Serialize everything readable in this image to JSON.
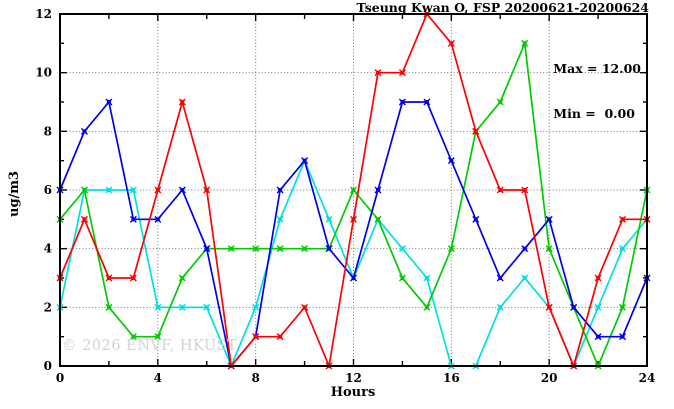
{
  "watermark": {
    "text": "© 2026 ENVF, HKUST"
  },
  "chart_data": {
    "type": "line",
    "title": "Tseung Kwan O, FSP 20200621-20200624",
    "xlabel": "Hours",
    "ylabel": "ug/m3",
    "xlim": [
      0,
      24
    ],
    "ylim": [
      0,
      12
    ],
    "x_major_ticks": [
      0,
      4,
      8,
      12,
      16,
      20,
      24
    ],
    "x_minor_tick_step": 2,
    "y_major_ticks": [
      0,
      2,
      4,
      6,
      8,
      10,
      12
    ],
    "y_minor_tick_step": 1,
    "grid": {
      "x": [
        4,
        8,
        12,
        16,
        20
      ],
      "y": [
        2,
        4,
        6,
        8,
        10
      ],
      "style": "dotted"
    },
    "legend": "none",
    "x": [
      0,
      1,
      2,
      3,
      4,
      5,
      6,
      7,
      8,
      9,
      10,
      11,
      12,
      13,
      14,
      15,
      16,
      17,
      18,
      19,
      20,
      21,
      22,
      23,
      24
    ],
    "series": [
      {
        "name": "cyan-line",
        "color": "#00e0e0",
        "values": [
          2,
          6,
          6,
          6,
          2,
          2,
          2,
          0,
          2,
          5,
          7,
          5,
          3,
          5,
          4,
          3,
          0,
          0,
          2,
          3,
          2,
          0,
          2,
          4,
          5
        ]
      },
      {
        "name": "green-line",
        "color": "#00cc00",
        "values": [
          5,
          6,
          2,
          1,
          1,
          3,
          4,
          4,
          4,
          4,
          4,
          4,
          6,
          5,
          3,
          2,
          4,
          8,
          9,
          11,
          4,
          2,
          0,
          2,
          6
        ]
      },
      {
        "name": "blue-line",
        "color": "#0000ee",
        "values": [
          6,
          8,
          9,
          5,
          5,
          6,
          4,
          0,
          1,
          6,
          7,
          4,
          3,
          6,
          9,
          9,
          7,
          5,
          3,
          4,
          5,
          2,
          1,
          1,
          3
        ]
      },
      {
        "name": "red-line",
        "color": "#ff0000",
        "values": [
          3,
          5,
          3,
          3,
          6,
          9,
          6,
          0,
          1,
          1,
          2,
          0,
          5,
          10,
          10,
          12,
          11,
          8,
          6,
          6,
          2,
          0,
          3,
          5,
          5
        ]
      }
    ],
    "annotations": {
      "max": "Max = 12.00",
      "min": "Min =  0.00"
    },
    "stats": {
      "max": 12.0,
      "min": 0.0
    }
  }
}
